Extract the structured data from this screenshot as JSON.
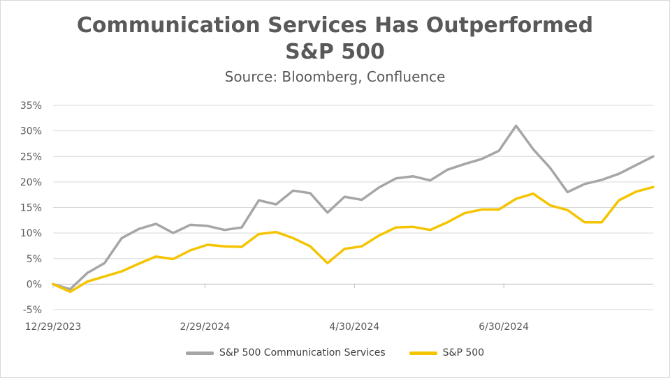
{
  "chart_data": {
    "type": "line",
    "title_lines": [
      "Communication Services Has Outperformed",
      "S&P 500"
    ],
    "subtitle": "Source: Bloomberg, Confluence",
    "xlabel": "",
    "ylabel": "",
    "x_tick_labels": [
      "12/29/2023",
      "2/29/2024",
      "4/30/2024",
      "6/30/2024"
    ],
    "y_tick_labels": [
      "35%",
      "30%",
      "25%",
      "20%",
      "15%",
      "10%",
      "5%",
      "0%",
      "-5%"
    ],
    "ylim": [
      -5,
      35
    ],
    "grid": true,
    "legend_position": "bottom",
    "x": [
      "2023-12-29",
      "2024-01-05",
      "2024-01-12",
      "2024-01-19",
      "2024-01-26",
      "2024-02-02",
      "2024-02-09",
      "2024-02-16",
      "2024-02-23",
      "2024-03-01",
      "2024-03-08",
      "2024-03-15",
      "2024-03-22",
      "2024-03-29",
      "2024-04-05",
      "2024-04-12",
      "2024-04-19",
      "2024-04-26",
      "2024-05-03",
      "2024-05-10",
      "2024-05-17",
      "2024-05-24",
      "2024-05-31",
      "2024-06-07",
      "2024-06-14",
      "2024-06-21",
      "2024-06-28",
      "2024-07-05",
      "2024-07-12",
      "2024-07-19",
      "2024-07-26",
      "2024-08-02",
      "2024-08-09",
      "2024-08-16",
      "2024-08-23",
      "2024-08-30"
    ],
    "series": [
      {
        "name": "S&P 500 Communication Services",
        "color": "#a6a6a6",
        "values": [
          0.0,
          -1.0,
          2.2,
          4.1,
          9.0,
          10.8,
          11.8,
          10.0,
          11.6,
          11.4,
          10.6,
          11.1,
          16.4,
          15.6,
          18.3,
          17.8,
          14.0,
          17.1,
          16.5,
          18.9,
          20.7,
          21.1,
          20.3,
          22.4,
          23.5,
          24.5,
          26.1,
          31.0,
          26.4,
          22.7,
          18.0,
          19.6,
          20.4,
          21.6,
          23.3,
          25.0
        ]
      },
      {
        "name": "S&P 500",
        "color": "#f5c400",
        "values": [
          0.0,
          -1.5,
          0.5,
          1.5,
          2.5,
          4.0,
          5.4,
          4.9,
          6.6,
          7.7,
          7.4,
          7.3,
          9.8,
          10.2,
          9.0,
          7.4,
          4.1,
          6.9,
          7.4,
          9.5,
          11.1,
          11.2,
          10.6,
          12.1,
          13.9,
          14.6,
          14.6,
          16.7,
          17.7,
          15.4,
          14.5,
          12.1,
          12.1,
          16.4,
          18.1,
          19.0
        ]
      }
    ]
  }
}
